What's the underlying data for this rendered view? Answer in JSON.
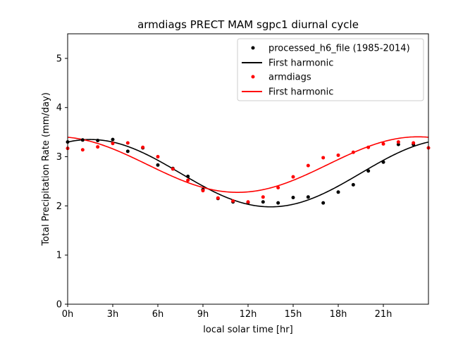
{
  "chart_data": {
    "type": "scatter",
    "title": "armdiags PRECT MAM sgpc1 diurnal cycle",
    "xlabel": "local solar time [hr]",
    "ylabel": "Total Precipitation Rate (mm/day)",
    "xlim": [
      0,
      24
    ],
    "ylim": [
      0,
      5.5
    ],
    "xticks": [
      0,
      3,
      6,
      9,
      12,
      15,
      18,
      21
    ],
    "xtick_labels": [
      "0h",
      "3h",
      "6h",
      "9h",
      "12h",
      "15h",
      "18h",
      "21h"
    ],
    "yticks": [
      0,
      1,
      2,
      3,
      4,
      5
    ],
    "ytick_labels": [
      "0",
      "1",
      "2",
      "3",
      "4",
      "5"
    ],
    "legend_position": "top-right",
    "series": [
      {
        "name": "processed_h6_file (1985-2014)",
        "kind": "points",
        "color": "#000000",
        "x": [
          0,
          1,
          2,
          3,
          4,
          5,
          6,
          7,
          8,
          9,
          10,
          11,
          12,
          13,
          14,
          15,
          16,
          17,
          18,
          19,
          20,
          21,
          22,
          23
        ],
        "y": [
          3.3,
          3.34,
          3.33,
          3.35,
          3.11,
          3.18,
          2.83,
          2.76,
          2.6,
          2.33,
          2.15,
          2.08,
          2.07,
          2.08,
          2.06,
          2.17,
          2.18,
          2.06,
          2.28,
          2.43,
          2.71,
          2.89,
          3.25,
          3.25
        ]
      },
      {
        "name": "First harmonic",
        "kind": "harmonic",
        "color": "#000000",
        "mean": 2.665,
        "amplitude": 0.685,
        "peak_hour": 1.5
      },
      {
        "name": "armdiags",
        "kind": "points",
        "color": "#ff0000",
        "x": [
          0,
          1,
          2,
          3,
          4,
          5,
          6,
          7,
          8,
          9,
          10,
          11,
          12,
          13,
          14,
          15,
          16,
          17,
          18,
          19,
          20,
          21,
          22,
          23,
          24
        ],
        "y": [
          3.17,
          3.14,
          3.2,
          3.27,
          3.28,
          3.19,
          3.0,
          2.75,
          2.52,
          2.31,
          2.16,
          2.1,
          2.08,
          2.18,
          2.37,
          2.59,
          2.82,
          2.98,
          3.03,
          3.09,
          3.19,
          3.26,
          3.3,
          3.28,
          3.18
        ]
      },
      {
        "name": "First harmonic",
        "kind": "harmonic",
        "color": "#ff0000",
        "mean": 2.84,
        "amplitude": 0.565,
        "peak_hour": 23.3
      }
    ]
  }
}
